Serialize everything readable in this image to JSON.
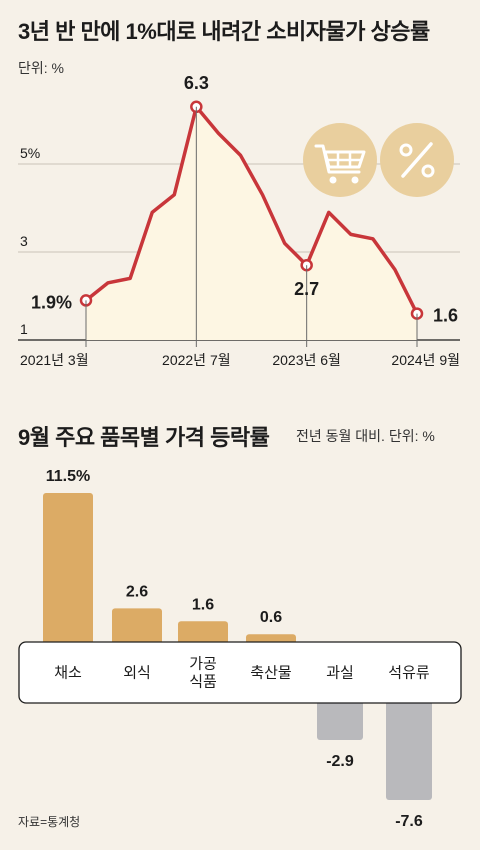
{
  "title": "3년 반 만에 1%대로 내려간 소비자물가 상승률",
  "unit": "단위: %",
  "line_chart": {
    "point_labels": [
      {
        "text": "1.9%",
        "index": 0
      },
      {
        "text": "6.3",
        "index": 5
      },
      {
        "text": "2.7",
        "index": 10
      },
      {
        "text": "1.6",
        "index": 15
      }
    ],
    "x_ticks": [
      {
        "text": "2021년 3월",
        "index": 0
      },
      {
        "text": "2022년 7월",
        "index": 5
      },
      {
        "text": "2023년 6월",
        "index": 10
      },
      {
        "text": "2024년 9월",
        "index": 15
      }
    ]
  },
  "icons": [
    "shopping-cart-icon",
    "percent-icon"
  ],
  "bar_title": "9월 주요 품목별 가격 등락률",
  "bar_note": "전년 동월 대비. 단위: %",
  "source": "자료=통계청",
  "colors": {
    "line": "#c8363a",
    "area": "#fdf6e3",
    "positive_bar": "#dcab65",
    "negative_bar": "#b9b9bc",
    "icon_circle": "#e9cf9e",
    "icon_glyph": "#ffffff",
    "band_fill": "#ffffff"
  },
  "chart_data": [
    {
      "type": "line",
      "title": "3년 반 만에 1%대로 내려간 소비자물가 상승률",
      "ylabel": "단위: %",
      "y_ticks": [
        1,
        3,
        5
      ],
      "y_tick_labels": [
        "1",
        "3",
        "5%"
      ],
      "ylim": [
        1,
        7.5
      ],
      "x": [
        "2021년 3월",
        "",
        "",
        "",
        "",
        "2022년 7월",
        "",
        "",
        "",
        "",
        "2023년 6월",
        "",
        "",
        "",
        "",
        "2024년 9월"
      ],
      "values": [
        1.9,
        2.3,
        2.4,
        3.9,
        4.3,
        6.3,
        5.7,
        5.2,
        4.3,
        3.2,
        2.7,
        3.9,
        3.4,
        3.3,
        2.6,
        1.6
      ],
      "grid": true
    },
    {
      "type": "bar",
      "title": "9월 주요 품목별 가격 등락률",
      "ylabel": "전년 동월 대비. 단위: %",
      "categories": [
        "채소",
        "외식",
        "가공\n식품",
        "축산물",
        "과실",
        "석유류"
      ],
      "values": [
        11.5,
        2.6,
        1.6,
        0.6,
        -2.9,
        -7.6
      ],
      "value_labels": [
        "11.5%",
        "2.6",
        "1.6",
        "0.6",
        "-2.9",
        "-7.6"
      ]
    }
  ]
}
